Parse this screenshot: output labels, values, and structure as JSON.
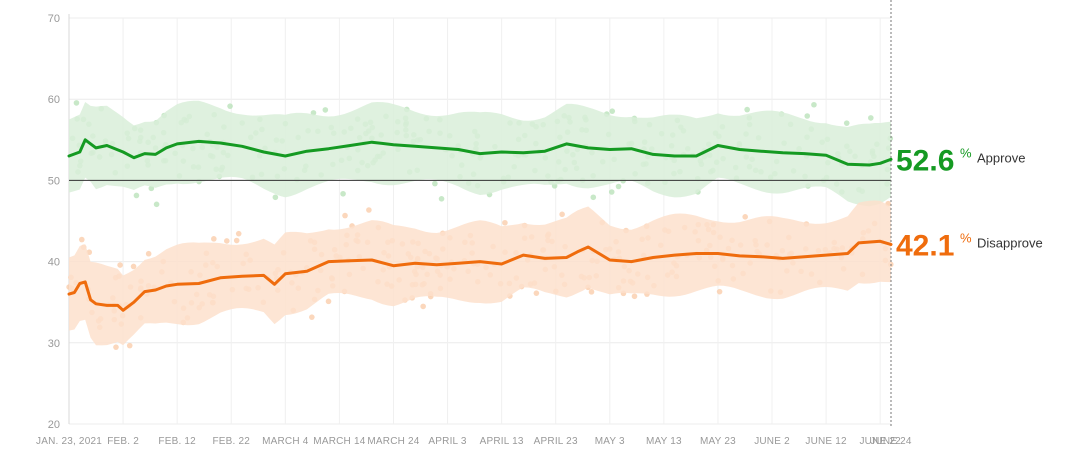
{
  "chart_data": {
    "type": "line",
    "title": "",
    "xlabel": "",
    "ylabel": "",
    "ylim": [
      20,
      70
    ],
    "grid": true,
    "y_ticks": [
      20,
      30,
      40,
      50,
      60,
      70
    ],
    "x_ticks": [
      {
        "day": 0,
        "label": "JAN. 23, 2021"
      },
      {
        "day": 10,
        "label": "FEB. 2"
      },
      {
        "day": 20,
        "label": "FEB. 12"
      },
      {
        "day": 30,
        "label": "FEB. 22"
      },
      {
        "day": 40,
        "label": "MARCH 4"
      },
      {
        "day": 50,
        "label": "MARCH 14"
      },
      {
        "day": 60,
        "label": "MARCH 24"
      },
      {
        "day": 70,
        "label": "APRIL 3"
      },
      {
        "day": 80,
        "label": "APRIL 13"
      },
      {
        "day": 90,
        "label": "APRIL 23"
      },
      {
        "day": 100,
        "label": "MAY 3"
      },
      {
        "day": 110,
        "label": "MAY 13"
      },
      {
        "day": 120,
        "label": "MAY 23"
      },
      {
        "day": 130,
        "label": "JUNE 2"
      },
      {
        "day": 140,
        "label": "JUNE 12"
      },
      {
        "day": 150,
        "label": "JUNE 22"
      },
      {
        "day": 152,
        "label": "JUNE 24"
      }
    ],
    "x_range_days": [
      0,
      152
    ],
    "reference_line": 50,
    "current_day": 152,
    "series": [
      {
        "name": "Approve",
        "current_value": "52.6",
        "percent_sign": "%",
        "color": "#159a22",
        "band_color": "#d9efd9",
        "dot_color": "#b5e0b5",
        "band_halfwidth": 4.5,
        "days": [
          0,
          2,
          3,
          5,
          7,
          10,
          12,
          14,
          16,
          18,
          20,
          24,
          28,
          32,
          36,
          40,
          44,
          48,
          52,
          56,
          60,
          64,
          68,
          72,
          76,
          80,
          84,
          88,
          92,
          96,
          100,
          104,
          108,
          112,
          116,
          120,
          124,
          128,
          132,
          136,
          140,
          144,
          148,
          150,
          152
        ],
        "values": [
          53.0,
          53.5,
          55.0,
          54.0,
          54.3,
          53.5,
          52.8,
          53.3,
          53.2,
          54.0,
          54.5,
          54.8,
          54.6,
          54.2,
          53.5,
          53.0,
          53.6,
          53.9,
          54.3,
          54.7,
          54.4,
          54.2,
          54.0,
          53.8,
          53.3,
          53.5,
          53.4,
          53.6,
          54.5,
          54.0,
          53.8,
          53.9,
          53.2,
          53.0,
          53.0,
          54.3,
          53.8,
          53.6,
          53.4,
          53.3,
          53.1,
          52.0,
          51.9,
          52.1,
          52.6
        ]
      },
      {
        "name": "Disapprove",
        "current_value": "42.1",
        "percent_sign": "%",
        "color": "#ef6c0d",
        "band_color": "#fde1cc",
        "dot_color": "#fac9a6",
        "band_halfwidth": 4.5,
        "days": [
          0,
          1,
          2,
          3,
          4,
          5,
          7,
          9,
          10,
          12,
          14,
          16,
          18,
          20,
          24,
          28,
          32,
          36,
          38,
          40,
          44,
          48,
          52,
          56,
          60,
          64,
          68,
          72,
          76,
          80,
          84,
          88,
          92,
          94,
          96,
          100,
          104,
          108,
          112,
          116,
          120,
          124,
          128,
          132,
          136,
          140,
          144,
          146,
          150,
          152
        ],
        "values": [
          36.0,
          36.2,
          37.3,
          37.5,
          35.3,
          34.8,
          34.6,
          34.6,
          34.0,
          35.0,
          36.3,
          36.5,
          37.0,
          37.2,
          37.3,
          38.0,
          38.2,
          38.3,
          37.2,
          38.5,
          38.8,
          40.0,
          40.1,
          40.2,
          39.5,
          39.8,
          39.6,
          39.8,
          40.0,
          39.7,
          40.8,
          40.4,
          40.5,
          41.2,
          41.8,
          40.2,
          40.0,
          40.5,
          40.8,
          41.0,
          41.0,
          40.7,
          40.6,
          40.4,
          40.6,
          40.8,
          41.0,
          42.3,
          42.5,
          42.1
        ]
      }
    ]
  }
}
